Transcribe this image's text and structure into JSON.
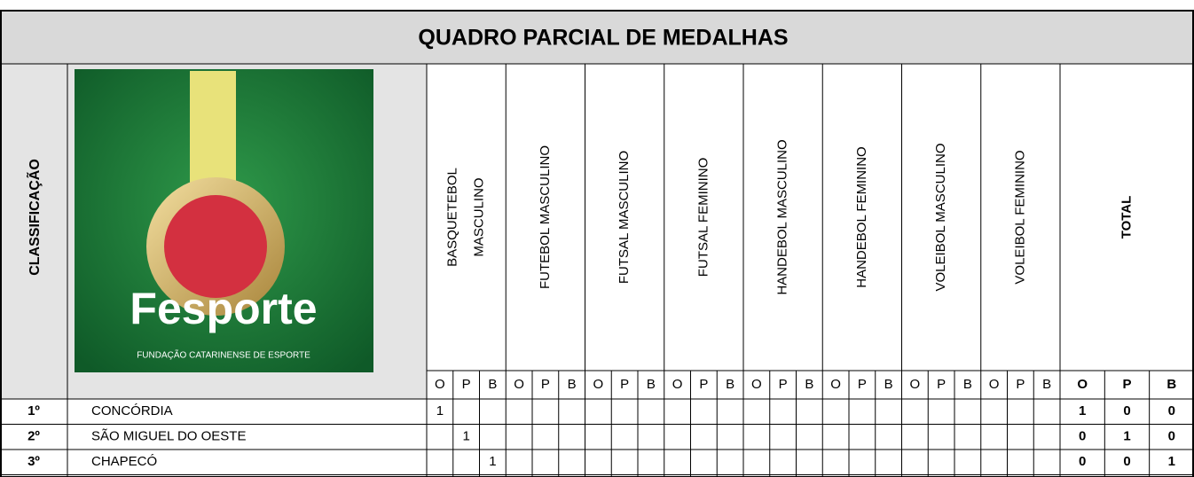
{
  "title": "QUADRO PARCIAL DE MEDALHAS",
  "rank_header": "CLASSIFICAÇÃO",
  "logo": {
    "name": "Fesporte",
    "subtitle": "FUNDAÇÃO CATARINENSE DE ESPORTE"
  },
  "sports": [
    {
      "lines": [
        "BASQUETEBOL",
        "MASCULINO"
      ]
    },
    {
      "lines": [
        "FUTEBOL MASCULINO"
      ]
    },
    {
      "lines": [
        "FUTSAL MASCULINO"
      ]
    },
    {
      "lines": [
        "FUTSAL FEMININO"
      ]
    },
    {
      "lines": [
        "HANDEBOL MASCULINO"
      ]
    },
    {
      "lines": [
        "HANDEBOL FEMININO"
      ]
    },
    {
      "lines": [
        "VOLEIBOL MASCULINO"
      ]
    },
    {
      "lines": [
        "VOLEIBOL FEMININO"
      ]
    }
  ],
  "medal_headers": [
    "O",
    "P",
    "B"
  ],
  "total_header": "TOTAL",
  "rows": [
    {
      "rank": "1º",
      "city": "CONCÓRDIA",
      "cells": [
        1,
        null,
        null,
        null,
        null,
        null,
        null,
        null,
        null,
        null,
        null,
        null,
        null,
        null,
        null,
        null,
        null,
        null,
        null,
        null,
        null,
        null,
        null,
        null
      ],
      "totals": [
        1,
        0,
        0
      ]
    },
    {
      "rank": "2º",
      "city": "SÃO MIGUEL DO OESTE",
      "cells": [
        null,
        1,
        null,
        null,
        null,
        null,
        null,
        null,
        null,
        null,
        null,
        null,
        null,
        null,
        null,
        null,
        null,
        null,
        null,
        null,
        null,
        null,
        null,
        null
      ],
      "totals": [
        0,
        1,
        0
      ]
    },
    {
      "rank": "3º",
      "city": "CHAPECÓ",
      "cells": [
        null,
        null,
        1,
        null,
        null,
        null,
        null,
        null,
        null,
        null,
        null,
        null,
        null,
        null,
        null,
        null,
        null,
        null,
        null,
        null,
        null,
        null,
        null,
        null
      ],
      "totals": [
        0,
        0,
        1
      ]
    }
  ]
}
